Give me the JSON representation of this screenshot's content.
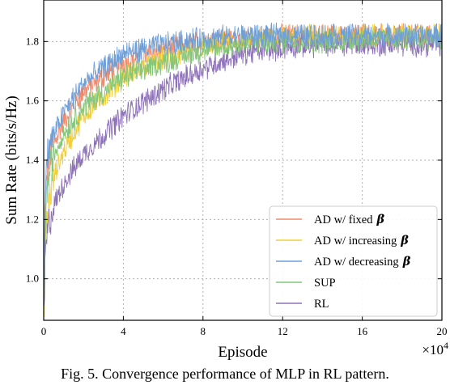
{
  "chart_data": {
    "type": "line",
    "xlabel": "Episode",
    "ylabel": "Sum Rate (bits/s/Hz)",
    "x_multiplier": "×10",
    "x_multiplier_exp": "4",
    "xlim": [
      0,
      200000
    ],
    "ylim": [
      0.86,
      1.94
    ],
    "x_tick_values": [
      0,
      40000,
      80000,
      120000,
      160000,
      200000
    ],
    "x_tick_labels": [
      "0",
      "4",
      "8",
      "12",
      "16",
      "20"
    ],
    "y_ticks": [
      1.0,
      1.2,
      1.4,
      1.6,
      1.8
    ],
    "y_tick_labels": [
      "1.0",
      "1.2",
      "1.4",
      "1.6",
      "1.8"
    ],
    "grid": true,
    "legend_position": "bottom-right",
    "series": [
      {
        "name": "AD w/ fixed",
        "color": "#f28b6b",
        "x": [
          0,
          1000,
          3000,
          6000,
          10000,
          20000,
          40000,
          60000,
          80000,
          100000,
          120000,
          140000,
          160000,
          180000,
          200000
        ],
        "y": [
          0.9,
          1.3,
          1.42,
          1.47,
          1.53,
          1.63,
          1.73,
          1.77,
          1.8,
          1.81,
          1.82,
          1.82,
          1.82,
          1.82,
          1.82
        ]
      },
      {
        "name": "AD w/ increasing",
        "color": "#f2cf3a",
        "x": [
          0,
          1000,
          3000,
          6000,
          10000,
          20000,
          40000,
          60000,
          80000,
          100000,
          120000,
          140000,
          160000,
          180000,
          200000
        ],
        "y": [
          0.88,
          1.15,
          1.28,
          1.36,
          1.43,
          1.55,
          1.68,
          1.74,
          1.78,
          1.8,
          1.82,
          1.82,
          1.82,
          1.82,
          1.82
        ]
      },
      {
        "name": "AD w/ decreasing",
        "color": "#6f9fd8",
        "x": [
          0,
          1000,
          3000,
          6000,
          10000,
          20000,
          40000,
          60000,
          80000,
          100000,
          120000,
          140000,
          160000,
          180000,
          200000
        ],
        "y": [
          0.92,
          1.38,
          1.45,
          1.5,
          1.56,
          1.66,
          1.76,
          1.79,
          1.81,
          1.82,
          1.82,
          1.82,
          1.82,
          1.82,
          1.82
        ]
      },
      {
        "name": "SUP",
        "color": "#84c77b",
        "x": [
          0,
          1000,
          3000,
          6000,
          10000,
          20000,
          40000,
          60000,
          80000,
          100000,
          120000,
          140000,
          160000,
          180000,
          200000
        ],
        "y": [
          0.88,
          1.25,
          1.37,
          1.43,
          1.49,
          1.58,
          1.68,
          1.73,
          1.77,
          1.79,
          1.8,
          1.8,
          1.81,
          1.81,
          1.81
        ]
      },
      {
        "name": "RL",
        "color": "#8e72b8",
        "x": [
          0,
          1000,
          3000,
          6000,
          10000,
          20000,
          40000,
          60000,
          80000,
          100000,
          120000,
          140000,
          160000,
          180000,
          200000
        ],
        "y": [
          0.86,
          1.1,
          1.2,
          1.26,
          1.32,
          1.42,
          1.55,
          1.64,
          1.71,
          1.76,
          1.78,
          1.79,
          1.79,
          1.79,
          1.79
        ]
      }
    ],
    "legend_suffix": "β"
  },
  "caption": "Fig. 5.  Convergence performance of MLP in RL pattern."
}
